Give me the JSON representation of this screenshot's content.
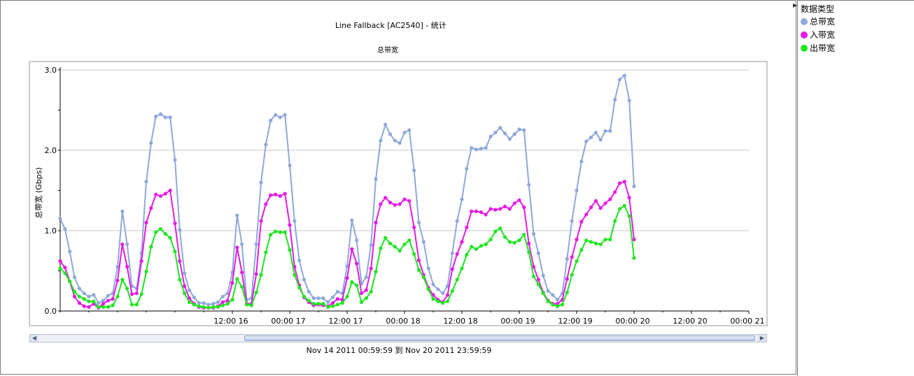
{
  "chart_data": {
    "type": "line",
    "title": "Line Fallback [AC2540] - 统计",
    "subtitle": "总带宽",
    "ylabel": "总带宽 (Gbps)",
    "xlabel": "",
    "ylim": [
      0,
      3.0
    ],
    "yticks": [
      "0.0",
      "1.0",
      "2.0",
      "3.0"
    ],
    "xtick_labels": [
      "12:00 16",
      "00:00 17",
      "12:00 17",
      "00:00 18",
      "12:00 18",
      "00:00 19",
      "12:00 19",
      "00:00 20",
      "12:00 20",
      "00:00 21"
    ],
    "x_start": "15 00:00",
    "x_step_hours": 1,
    "series": [
      {
        "name": "总带宽",
        "color": "#8fa8d8",
        "values": [
          1.15,
          1.02,
          0.74,
          0.42,
          0.28,
          0.22,
          0.18,
          0.2,
          0.1,
          0.13,
          0.19,
          0.22,
          0.55,
          1.24,
          0.83,
          0.31,
          0.28,
          0.72,
          1.61,
          2.09,
          2.42,
          2.45,
          2.41,
          2.41,
          1.88,
          1.01,
          0.47,
          0.26,
          0.17,
          0.1,
          0.1,
          0.08,
          0.09,
          0.11,
          0.18,
          0.22,
          0.48,
          1.19,
          0.83,
          0.14,
          0.16,
          0.83,
          1.6,
          2.07,
          2.37,
          2.44,
          2.41,
          2.44,
          1.81,
          1.12,
          0.63,
          0.39,
          0.24,
          0.16,
          0.16,
          0.16,
          0.11,
          0.17,
          0.24,
          0.22,
          0.56,
          1.13,
          0.88,
          0.34,
          0.42,
          0.82,
          1.64,
          2.12,
          2.32,
          2.2,
          2.12,
          2.09,
          2.22,
          2.25,
          1.75,
          1.1,
          0.86,
          0.53,
          0.33,
          0.27,
          0.22,
          0.31,
          0.72,
          1.12,
          1.39,
          1.77,
          2.03,
          2.01,
          2.02,
          2.03,
          2.17,
          2.22,
          2.28,
          2.21,
          2.14,
          2.2,
          2.26,
          2.25,
          1.57,
          0.96,
          0.72,
          0.44,
          0.25,
          0.2,
          0.14,
          0.22,
          0.65,
          1.12,
          1.5,
          1.86,
          2.11,
          2.16,
          2.22,
          2.13,
          2.24,
          2.24,
          2.63,
          2.88,
          2.93,
          2.62,
          1.55
        ]
      },
      {
        "name": "入带宽",
        "color": "#e61ae6",
        "values": [
          0.62,
          0.54,
          0.37,
          0.18,
          0.1,
          0.06,
          0.05,
          0.09,
          0.04,
          0.09,
          0.13,
          0.15,
          0.38,
          0.83,
          0.55,
          0.21,
          0.22,
          0.62,
          1.1,
          1.28,
          1.45,
          1.43,
          1.46,
          1.5,
          1.09,
          0.62,
          0.31,
          0.16,
          0.09,
          0.05,
          0.04,
          0.04,
          0.04,
          0.06,
          0.11,
          0.13,
          0.35,
          0.79,
          0.48,
          0.09,
          0.09,
          0.46,
          1.12,
          1.33,
          1.44,
          1.45,
          1.43,
          1.46,
          1.07,
          0.55,
          0.32,
          0.17,
          0.11,
          0.07,
          0.08,
          0.07,
          0.06,
          0.1,
          0.15,
          0.14,
          0.41,
          0.77,
          0.59,
          0.22,
          0.26,
          0.53,
          1.1,
          1.33,
          1.41,
          1.35,
          1.32,
          1.33,
          1.39,
          1.37,
          1.04,
          0.63,
          0.45,
          0.29,
          0.2,
          0.14,
          0.11,
          0.2,
          0.52,
          0.71,
          0.86,
          1.04,
          1.24,
          1.24,
          1.23,
          1.2,
          1.27,
          1.26,
          1.27,
          1.3,
          1.27,
          1.34,
          1.38,
          1.29,
          0.84,
          0.55,
          0.39,
          0.23,
          0.13,
          0.09,
          0.09,
          0.14,
          0.4,
          0.67,
          0.89,
          1.11,
          1.2,
          1.29,
          1.37,
          1.28,
          1.34,
          1.39,
          1.48,
          1.59,
          1.61,
          1.41,
          0.89
        ]
      },
      {
        "name": "出带宽",
        "color": "#1ee61e",
        "values": [
          0.53,
          0.47,
          0.37,
          0.24,
          0.18,
          0.15,
          0.12,
          0.12,
          0.05,
          0.05,
          0.05,
          0.07,
          0.18,
          0.39,
          0.28,
          0.08,
          0.08,
          0.21,
          0.49,
          0.8,
          0.98,
          1.02,
          0.96,
          0.91,
          0.74,
          0.39,
          0.22,
          0.11,
          0.08,
          0.06,
          0.05,
          0.04,
          0.05,
          0.05,
          0.07,
          0.09,
          0.14,
          0.4,
          0.3,
          0.08,
          0.07,
          0.23,
          0.45,
          0.73,
          0.95,
          0.99,
          0.98,
          0.98,
          0.76,
          0.45,
          0.29,
          0.18,
          0.13,
          0.09,
          0.09,
          0.09,
          0.05,
          0.06,
          0.08,
          0.1,
          0.18,
          0.36,
          0.32,
          0.11,
          0.16,
          0.24,
          0.49,
          0.78,
          0.91,
          0.84,
          0.8,
          0.75,
          0.83,
          0.88,
          0.71,
          0.51,
          0.42,
          0.27,
          0.15,
          0.12,
          0.1,
          0.12,
          0.25,
          0.39,
          0.53,
          0.7,
          0.8,
          0.77,
          0.81,
          0.83,
          0.89,
          0.99,
          1.03,
          0.92,
          0.86,
          0.85,
          0.88,
          0.95,
          0.73,
          0.43,
          0.33,
          0.22,
          0.12,
          0.08,
          0.06,
          0.08,
          0.23,
          0.45,
          0.62,
          0.76,
          0.88,
          0.86,
          0.84,
          0.83,
          0.89,
          0.89,
          1.12,
          1.27,
          1.31,
          1.18,
          0.66
        ]
      }
    ]
  },
  "legend": {
    "title": "数据类型"
  },
  "range_label": "Nov 14 2011  00:59:59  到  Nov 20 2011  23:59:59"
}
